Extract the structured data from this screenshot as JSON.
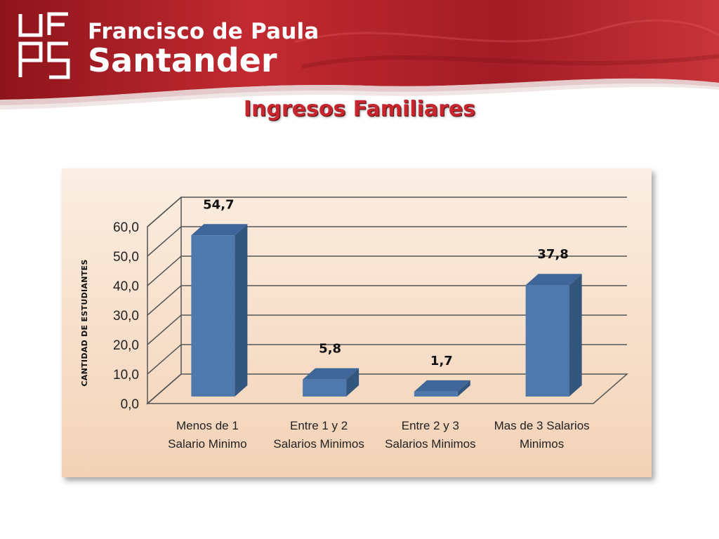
{
  "header": {
    "logo_line1": "Francisco de Paula",
    "logo_line2": "Santander",
    "logo_mark": "UFPS",
    "colors": {
      "banner": "#b3202a",
      "banner_dark": "#7a1016"
    }
  },
  "slide": {
    "title": "Ingresos Familiares"
  },
  "chart_data": {
    "type": "bar",
    "categories": [
      [
        "Menos de 1",
        "Salario Minimo"
      ],
      [
        "Entre 1 y 2",
        "Salarios Minimos"
      ],
      [
        "Entre 2 y 3",
        "Salarios Minimos"
      ],
      [
        "Mas de 3 Salarios",
        "Minimos"
      ]
    ],
    "values": [
      54.7,
      5.8,
      1.7,
      37.8
    ],
    "data_labels": [
      "54,7",
      "5,8",
      "1,7",
      "37,8"
    ],
    "ylabel": "CANTIDAD DE ESTUDIANTES",
    "yticks": [
      "0,0",
      "10,0",
      "20,0",
      "30,0",
      "40,0",
      "50,0",
      "60,0"
    ],
    "ylim": [
      0,
      60
    ],
    "grid": true,
    "colors": {
      "bar_front": "#4f79ad",
      "bar_side": "#33567f",
      "bar_top": "#3f6698",
      "panel": "#f6dcc5"
    }
  }
}
